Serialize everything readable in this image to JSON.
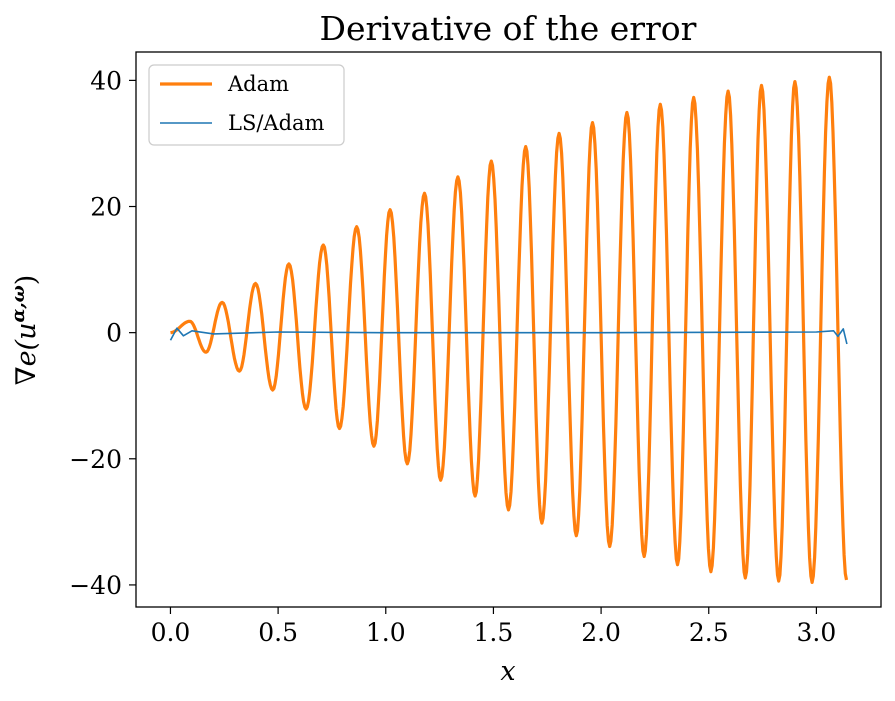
{
  "chart_data": {
    "type": "line",
    "title": "Derivative of the error",
    "xlabel": "x",
    "ylabel": "∇e(u^{α,ω})",
    "ylabel_parts": {
      "base": "∇e(u",
      "sup": "α,ω",
      "close": ")"
    },
    "xlim": [
      -0.16,
      3.3
    ],
    "ylim": [
      -43.5,
      44.5
    ],
    "xticks": [
      0.0,
      0.5,
      1.0,
      1.5,
      2.0,
      2.5,
      3.0
    ],
    "xtick_labels": [
      "0.0",
      "0.5",
      "1.0",
      "1.5",
      "2.0",
      "2.5",
      "3.0"
    ],
    "yticks": [
      -40,
      -20,
      0,
      20,
      40
    ],
    "ytick_labels": [
      "−40",
      "−20",
      "0",
      "20",
      "40"
    ],
    "grid": false,
    "legend": {
      "placement": "top-left"
    },
    "series": [
      {
        "name": "Adam",
        "color": "#ff7f0e",
        "x_range": [
          0.0,
          3.1416
        ],
        "model": "amplitude grows roughly linearly from 0 to about 40 with about 20 oscillations",
        "peaks": [
          {
            "x": 0.09,
            "y": 1.8
          },
          {
            "x": 0.24,
            "y": 4.8
          },
          {
            "x": 0.395,
            "y": 7.8
          },
          {
            "x": 0.55,
            "y": 10.9
          },
          {
            "x": 0.71,
            "y": 13.9
          },
          {
            "x": 0.865,
            "y": 16.8
          },
          {
            "x": 1.02,
            "y": 19.5
          },
          {
            "x": 1.18,
            "y": 22.1
          },
          {
            "x": 1.335,
            "y": 24.7
          },
          {
            "x": 1.49,
            "y": 27.2
          },
          {
            "x": 1.65,
            "y": 29.5
          },
          {
            "x": 1.805,
            "y": 31.6
          },
          {
            "x": 1.96,
            "y": 33.3
          },
          {
            "x": 2.12,
            "y": 34.9
          },
          {
            "x": 2.275,
            "y": 36.2
          },
          {
            "x": 2.43,
            "y": 37.3
          },
          {
            "x": 2.59,
            "y": 38.3
          },
          {
            "x": 2.745,
            "y": 39.2
          },
          {
            "x": 2.9,
            "y": 39.8
          },
          {
            "x": 3.06,
            "y": 40.5
          }
        ],
        "troughs": [
          {
            "x": 0.165,
            "y": -3.1
          },
          {
            "x": 0.32,
            "y": -6.1
          },
          {
            "x": 0.475,
            "y": -9.1
          },
          {
            "x": 0.63,
            "y": -12.1
          },
          {
            "x": 0.785,
            "y": -15.2
          },
          {
            "x": 0.945,
            "y": -18.0
          },
          {
            "x": 1.1,
            "y": -20.8
          },
          {
            "x": 1.255,
            "y": -23.4
          },
          {
            "x": 1.415,
            "y": -25.9
          },
          {
            "x": 1.57,
            "y": -28.1
          },
          {
            "x": 1.725,
            "y": -30.2
          },
          {
            "x": 1.885,
            "y": -32.2
          },
          {
            "x": 2.04,
            "y": -33.9
          },
          {
            "x": 2.2,
            "y": -35.5
          },
          {
            "x": 2.355,
            "y": -36.8
          },
          {
            "x": 2.51,
            "y": -37.9
          },
          {
            "x": 2.67,
            "y": -38.9
          },
          {
            "x": 2.825,
            "y": -39.4
          },
          {
            "x": 2.98,
            "y": -39.6
          },
          {
            "x": 3.14,
            "y": -39.2
          }
        ]
      },
      {
        "name": "LS/Adam",
        "color": "#1f77b4",
        "x_range": [
          0.0,
          3.1416
        ],
        "model": "near zero; small ripples up to about ±1 at both ends",
        "points": [
          {
            "x": 0.0,
            "y": -1.2
          },
          {
            "x": 0.03,
            "y": 0.7
          },
          {
            "x": 0.06,
            "y": -0.5
          },
          {
            "x": 0.1,
            "y": 0.3
          },
          {
            "x": 0.2,
            "y": -0.2
          },
          {
            "x": 0.5,
            "y": 0.1
          },
          {
            "x": 1.0,
            "y": 0.0
          },
          {
            "x": 2.0,
            "y": 0.0
          },
          {
            "x": 3.0,
            "y": 0.1
          },
          {
            "x": 3.08,
            "y": 0.3
          },
          {
            "x": 3.1,
            "y": -0.6
          },
          {
            "x": 3.125,
            "y": 0.6
          },
          {
            "x": 3.1416,
            "y": -1.8
          }
        ]
      }
    ]
  }
}
